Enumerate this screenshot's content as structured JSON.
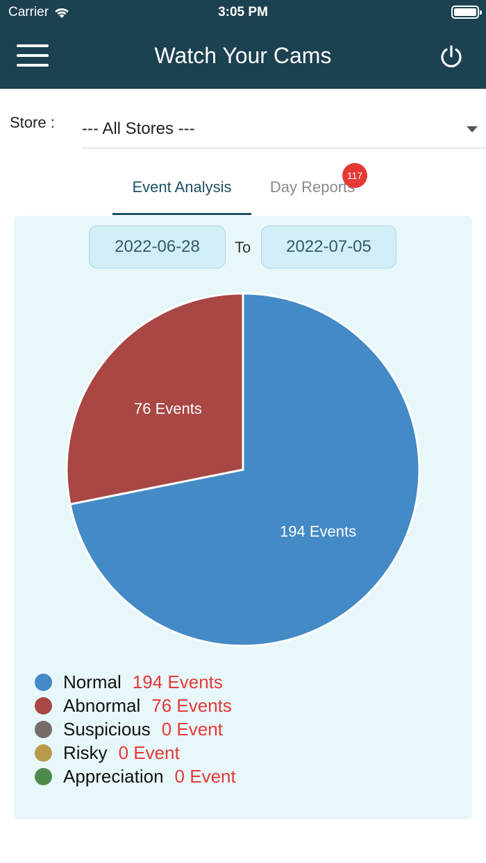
{
  "status_bar": {
    "carrier": "Carrier",
    "time": "3:05 PM"
  },
  "header": {
    "title": "Watch Your Cams",
    "menu_icon": "hamburger-icon",
    "power_icon": "power-icon"
  },
  "store": {
    "label": "Store :",
    "selected": "--- All Stores ---"
  },
  "tabs": [
    {
      "label": "Event Analysis",
      "active": true
    },
    {
      "label": "Day Reports",
      "active": false,
      "badge": "117"
    }
  ],
  "date_range": {
    "from": "2022-06-28",
    "separator": "To",
    "to": "2022-07-05"
  },
  "colors": {
    "header_bg": "#1c4150",
    "normal": "#438ac6",
    "abnormal": "#a84744",
    "suspicious": "#766b69",
    "risky": "#b99a4b",
    "appreciation": "#4e8a4b",
    "count_text": "#e53935"
  },
  "chart_data": {
    "type": "pie",
    "slices": [
      {
        "name": "Normal",
        "value": 194,
        "label": "194 Events",
        "color": "#438ac6"
      },
      {
        "name": "Abnormal",
        "value": 76,
        "label": "76 Events",
        "color": "#a84744"
      }
    ]
  },
  "legend": [
    {
      "name": "Normal",
      "count": "194 Events",
      "color": "#438ac6"
    },
    {
      "name": "Abnormal",
      "count": "76 Events",
      "color": "#a84744"
    },
    {
      "name": "Suspicious",
      "count": "0 Event",
      "color": "#766b69"
    },
    {
      "name": "Risky",
      "count": "0 Event",
      "color": "#b99a4b"
    },
    {
      "name": "Appreciation",
      "count": "0 Event",
      "color": "#4e8a4b"
    }
  ]
}
